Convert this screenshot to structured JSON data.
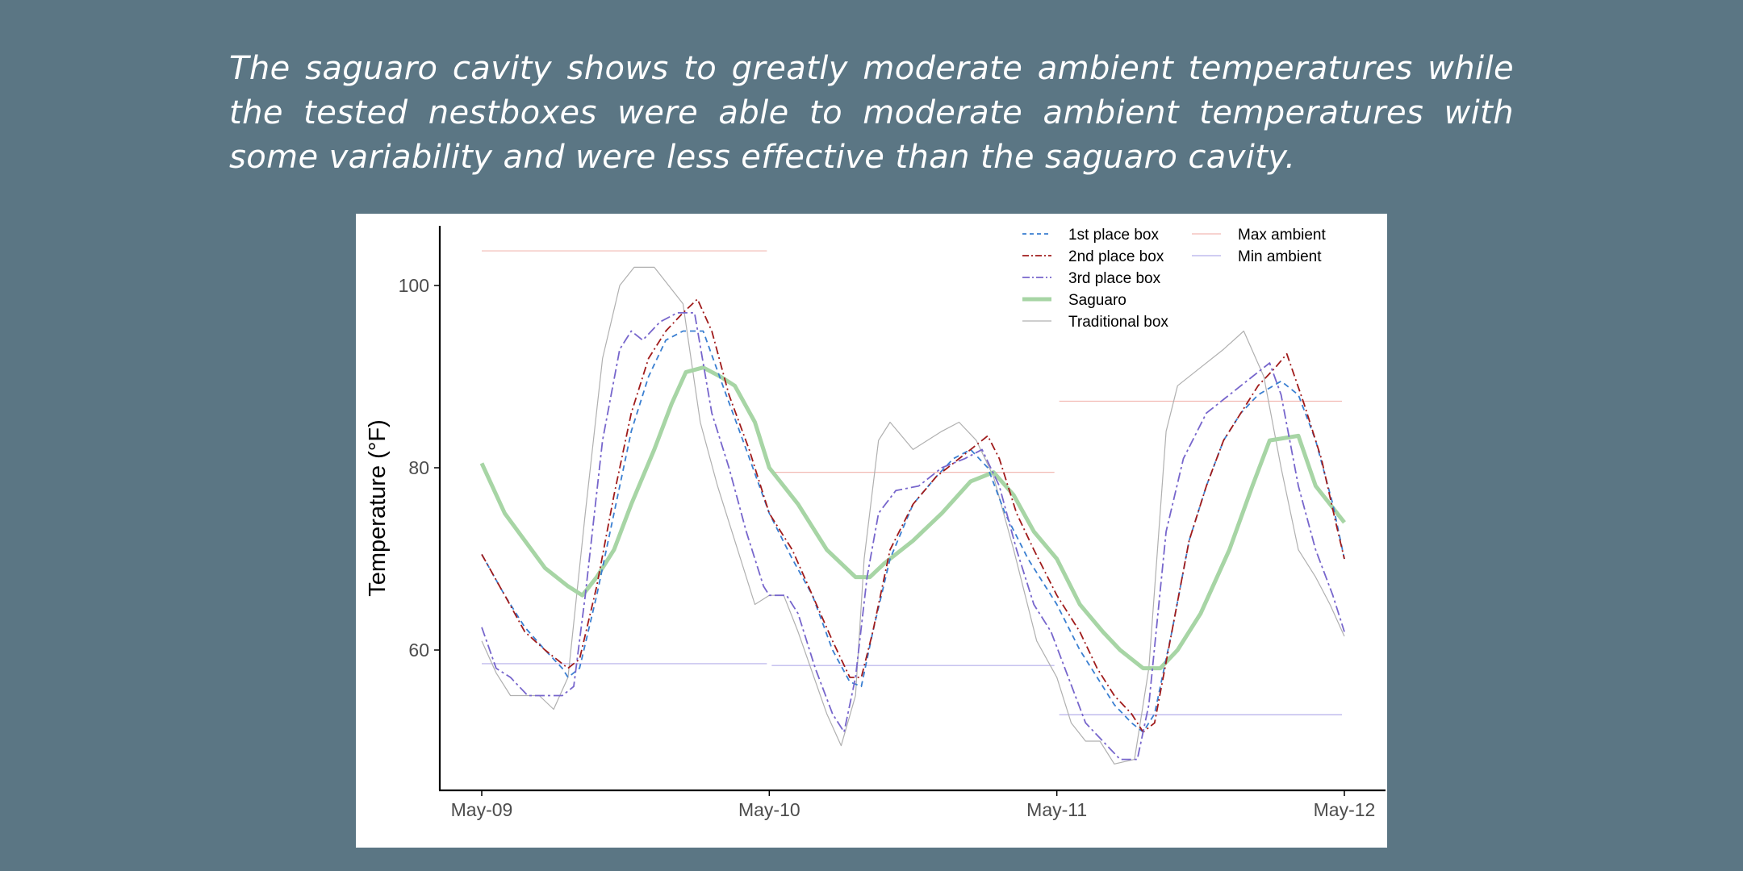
{
  "caption": "The saguaro cavity shows to greatly moderate ambient temperatures while the tested nestboxes were able to moderate ambient temperatures with some variability and were less effective than the saguaro cavity.",
  "chart_data": {
    "type": "line",
    "title": "",
    "xlabel": "",
    "ylabel": "Temperature (°F)",
    "xlim": [
      0,
      3
    ],
    "ylim": [
      46.5,
      106.5
    ],
    "x_ticks": [
      {
        "value": 0,
        "label": "May-09"
      },
      {
        "value": 1,
        "label": "May-10"
      },
      {
        "value": 2,
        "label": "May-11"
      },
      {
        "value": 3,
        "label": "May-12"
      }
    ],
    "y_ticks": [
      {
        "value": 60,
        "label": "60"
      },
      {
        "value": 80,
        "label": "80"
      },
      {
        "value": 100,
        "label": "100"
      }
    ],
    "grid": false,
    "legend_position": "top-right",
    "series": [
      {
        "name": "Traditional box",
        "color": "#b0b0b0",
        "style": "solid-thin",
        "points": [
          [
            0,
            61
          ],
          [
            0.05,
            57.5
          ],
          [
            0.1,
            55
          ],
          [
            0.2,
            55
          ],
          [
            0.25,
            53.5
          ],
          [
            0.3,
            57
          ],
          [
            0.36,
            75
          ],
          [
            0.42,
            92
          ],
          [
            0.48,
            100
          ],
          [
            0.53,
            102
          ],
          [
            0.6,
            102
          ],
          [
            0.65,
            100
          ],
          [
            0.7,
            98
          ],
          [
            0.76,
            85
          ],
          [
            0.82,
            78
          ],
          [
            0.88,
            72
          ],
          [
            0.95,
            65
          ],
          [
            1,
            66
          ],
          [
            1.05,
            66
          ],
          [
            1.1,
            62
          ],
          [
            1.2,
            53
          ],
          [
            1.25,
            49.5
          ],
          [
            1.3,
            55
          ],
          [
            1.33,
            70
          ],
          [
            1.38,
            83
          ],
          [
            1.42,
            85
          ],
          [
            1.5,
            82
          ],
          [
            1.6,
            84
          ],
          [
            1.66,
            85
          ],
          [
            1.72,
            83
          ],
          [
            1.78,
            79
          ],
          [
            1.85,
            71
          ],
          [
            1.93,
            61
          ],
          [
            2,
            57
          ],
          [
            2.05,
            52
          ],
          [
            2.1,
            50
          ],
          [
            2.15,
            50
          ],
          [
            2.2,
            47.5
          ],
          [
            2.27,
            48
          ],
          [
            2.32,
            58
          ],
          [
            2.38,
            84
          ],
          [
            2.42,
            89
          ],
          [
            2.5,
            91
          ],
          [
            2.58,
            93
          ],
          [
            2.65,
            95
          ],
          [
            2.72,
            90
          ],
          [
            2.78,
            80
          ],
          [
            2.84,
            71
          ],
          [
            2.9,
            68
          ],
          [
            2.95,
            65
          ],
          [
            3,
            61.5
          ]
        ]
      },
      {
        "name": "Saguaro",
        "color": "#a7d5a5",
        "style": "solid-thick",
        "points": [
          [
            0,
            80.5
          ],
          [
            0.08,
            75
          ],
          [
            0.15,
            72
          ],
          [
            0.22,
            69
          ],
          [
            0.3,
            67
          ],
          [
            0.35,
            66
          ],
          [
            0.4,
            68
          ],
          [
            0.46,
            71
          ],
          [
            0.52,
            76
          ],
          [
            0.6,
            82
          ],
          [
            0.66,
            87
          ],
          [
            0.71,
            90.5
          ],
          [
            0.77,
            91
          ],
          [
            0.83,
            90
          ],
          [
            0.88,
            89
          ],
          [
            0.95,
            85
          ],
          [
            1,
            80
          ],
          [
            1.1,
            76
          ],
          [
            1.2,
            71
          ],
          [
            1.3,
            68
          ],
          [
            1.35,
            68
          ],
          [
            1.4,
            69.5
          ],
          [
            1.5,
            72
          ],
          [
            1.6,
            75
          ],
          [
            1.7,
            78.5
          ],
          [
            1.78,
            79.5
          ],
          [
            1.85,
            77
          ],
          [
            1.92,
            73
          ],
          [
            2,
            70
          ],
          [
            2.08,
            65
          ],
          [
            2.16,
            62
          ],
          [
            2.22,
            60
          ],
          [
            2.3,
            58
          ],
          [
            2.36,
            58
          ],
          [
            2.42,
            60
          ],
          [
            2.5,
            64
          ],
          [
            2.6,
            71
          ],
          [
            2.68,
            78
          ],
          [
            2.74,
            83
          ],
          [
            2.84,
            83.5
          ],
          [
            2.9,
            78
          ],
          [
            2.95,
            76
          ],
          [
            3,
            74
          ]
        ]
      },
      {
        "name": "1st place box",
        "color": "#3a7fd1",
        "style": "dashed",
        "points": [
          [
            0,
            70.5
          ],
          [
            0.08,
            66
          ],
          [
            0.15,
            62.5
          ],
          [
            0.22,
            60
          ],
          [
            0.28,
            58
          ],
          [
            0.3,
            57
          ],
          [
            0.34,
            58
          ],
          [
            0.4,
            66
          ],
          [
            0.46,
            75
          ],
          [
            0.52,
            84
          ],
          [
            0.58,
            90
          ],
          [
            0.64,
            94
          ],
          [
            0.7,
            95
          ],
          [
            0.77,
            95
          ],
          [
            0.85,
            88
          ],
          [
            0.92,
            82
          ],
          [
            1,
            75
          ],
          [
            1.08,
            70
          ],
          [
            1.15,
            66
          ],
          [
            1.22,
            60
          ],
          [
            1.28,
            56.5
          ],
          [
            1.32,
            56
          ],
          [
            1.36,
            62
          ],
          [
            1.42,
            70
          ],
          [
            1.5,
            76
          ],
          [
            1.58,
            79
          ],
          [
            1.64,
            81
          ],
          [
            1.7,
            82
          ],
          [
            1.76,
            80
          ],
          [
            1.82,
            75
          ],
          [
            1.9,
            70
          ],
          [
            2,
            65
          ],
          [
            2.08,
            60
          ],
          [
            2.14,
            57
          ],
          [
            2.2,
            54
          ],
          [
            2.26,
            52
          ],
          [
            2.3,
            51
          ],
          [
            2.34,
            53
          ],
          [
            2.4,
            62
          ],
          [
            2.46,
            72
          ],
          [
            2.52,
            78
          ],
          [
            2.58,
            83
          ],
          [
            2.64,
            86
          ],
          [
            2.7,
            88
          ],
          [
            2.78,
            89.5
          ],
          [
            2.84,
            88
          ],
          [
            2.9,
            83
          ],
          [
            2.96,
            76
          ],
          [
            3,
            70
          ]
        ]
      },
      {
        "name": "2nd place box",
        "color": "#a01b1b",
        "style": "dashdot",
        "points": [
          [
            0,
            70.5
          ],
          [
            0.08,
            66
          ],
          [
            0.15,
            62
          ],
          [
            0.22,
            60
          ],
          [
            0.28,
            58.5
          ],
          [
            0.3,
            58
          ],
          [
            0.34,
            59
          ],
          [
            0.4,
            67
          ],
          [
            0.46,
            77
          ],
          [
            0.52,
            86
          ],
          [
            0.58,
            92
          ],
          [
            0.64,
            95
          ],
          [
            0.7,
            97
          ],
          [
            0.75,
            98.5
          ],
          [
            0.8,
            95
          ],
          [
            0.86,
            88
          ],
          [
            0.93,
            82
          ],
          [
            1,
            75
          ],
          [
            1.08,
            71
          ],
          [
            1.15,
            66
          ],
          [
            1.22,
            61
          ],
          [
            1.28,
            57
          ],
          [
            1.32,
            57
          ],
          [
            1.36,
            62
          ],
          [
            1.42,
            71
          ],
          [
            1.5,
            76
          ],
          [
            1.58,
            79
          ],
          [
            1.64,
            80.5
          ],
          [
            1.7,
            82
          ],
          [
            1.76,
            83.5
          ],
          [
            1.8,
            81
          ],
          [
            1.86,
            75
          ],
          [
            1.92,
            71
          ],
          [
            2,
            66
          ],
          [
            2.08,
            62
          ],
          [
            2.14,
            58
          ],
          [
            2.2,
            55
          ],
          [
            2.26,
            53
          ],
          [
            2.3,
            51
          ],
          [
            2.34,
            52
          ],
          [
            2.4,
            62
          ],
          [
            2.46,
            72
          ],
          [
            2.52,
            78
          ],
          [
            2.58,
            83
          ],
          [
            2.64,
            86
          ],
          [
            2.7,
            89
          ],
          [
            2.76,
            91
          ],
          [
            2.8,
            92.5
          ],
          [
            2.86,
            87
          ],
          [
            2.92,
            81
          ],
          [
            2.97,
            74
          ],
          [
            3,
            70
          ]
        ]
      },
      {
        "name": "3rd place box",
        "color": "#7766cc",
        "style": "dashdot-long",
        "points": [
          [
            0,
            62.5
          ],
          [
            0.05,
            58
          ],
          [
            0.1,
            57
          ],
          [
            0.16,
            55
          ],
          [
            0.22,
            55
          ],
          [
            0.28,
            55
          ],
          [
            0.32,
            56
          ],
          [
            0.36,
            66
          ],
          [
            0.42,
            83
          ],
          [
            0.48,
            93
          ],
          [
            0.52,
            95
          ],
          [
            0.56,
            94
          ],
          [
            0.62,
            96
          ],
          [
            0.68,
            97
          ],
          [
            0.74,
            97
          ],
          [
            0.8,
            86
          ],
          [
            0.86,
            80
          ],
          [
            0.92,
            73
          ],
          [
            0.98,
            67
          ],
          [
            1,
            66
          ],
          [
            1.06,
            66
          ],
          [
            1.1,
            64
          ],
          [
            1.16,
            58
          ],
          [
            1.22,
            53
          ],
          [
            1.26,
            51
          ],
          [
            1.3,
            57
          ],
          [
            1.34,
            68
          ],
          [
            1.38,
            75
          ],
          [
            1.44,
            77.5
          ],
          [
            1.52,
            78
          ],
          [
            1.6,
            80
          ],
          [
            1.68,
            81
          ],
          [
            1.74,
            82
          ],
          [
            1.8,
            78
          ],
          [
            1.86,
            71
          ],
          [
            1.92,
            65
          ],
          [
            1.98,
            62
          ],
          [
            2.04,
            57
          ],
          [
            2.1,
            52
          ],
          [
            2.16,
            50
          ],
          [
            2.22,
            48
          ],
          [
            2.28,
            48
          ],
          [
            2.32,
            54
          ],
          [
            2.38,
            73
          ],
          [
            2.44,
            81
          ],
          [
            2.52,
            86
          ],
          [
            2.6,
            88
          ],
          [
            2.68,
            90
          ],
          [
            2.74,
            91.5
          ],
          [
            2.78,
            88
          ],
          [
            2.84,
            78
          ],
          [
            2.9,
            71
          ],
          [
            2.96,
            66
          ],
          [
            3,
            62
          ]
        ]
      },
      {
        "name": "Max ambient",
        "color": "#f2b9b3",
        "style": "solid-thin",
        "segments": [
          {
            "x": [
              0,
              1
            ],
            "y": 103.8
          },
          {
            "x": [
              1,
              2
            ],
            "y": 79.5
          },
          {
            "x": [
              2,
              3
            ],
            "y": 87.3
          }
        ]
      },
      {
        "name": "Min ambient",
        "color": "#b4aeea",
        "style": "solid-thin",
        "segments": [
          {
            "x": [
              0,
              1
            ],
            "y": 58.5
          },
          {
            "x": [
              1,
              2
            ],
            "y": 58.3
          },
          {
            "x": [
              2,
              3
            ],
            "y": 52.9
          }
        ]
      }
    ],
    "legend": [
      {
        "label": "1st place box",
        "color": "#3a7fd1",
        "style": "dashed"
      },
      {
        "label": "2nd place box",
        "color": "#a01b1b",
        "style": "dashdot"
      },
      {
        "label": "3rd place box",
        "color": "#7766cc",
        "style": "dashdot-long"
      },
      {
        "label": "Saguaro",
        "color": "#a7d5a5",
        "style": "solid-thick"
      },
      {
        "label": "Traditional box",
        "color": "#b0b0b0",
        "style": "solid-thin"
      },
      {
        "label": "Max ambient",
        "color": "#f2b9b3",
        "style": "solid-thin"
      },
      {
        "label": "Min ambient",
        "color": "#b4aeea",
        "style": "solid-thin"
      }
    ]
  }
}
